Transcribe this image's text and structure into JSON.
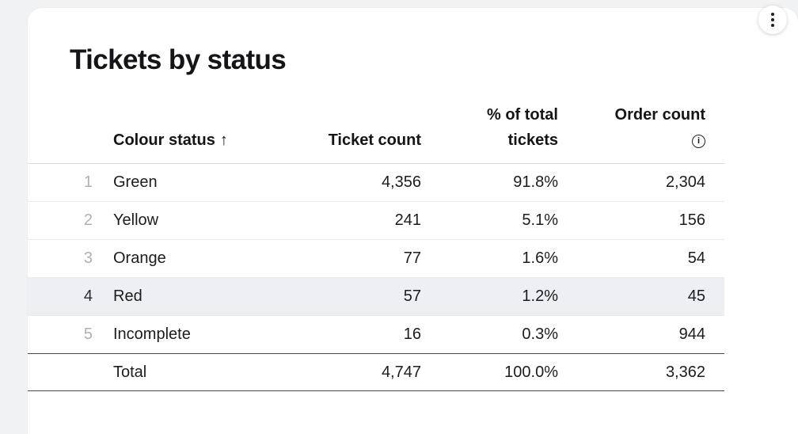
{
  "card": {
    "title": "Tickets by status"
  },
  "menu": {
    "kebab_icon": "more-options"
  },
  "table": {
    "headers": {
      "status": "Colour status",
      "status_sort_indicator": "↑",
      "ticket_count": "Ticket count",
      "pct_total": "% of total tickets",
      "order_count": "Order count",
      "order_count_info_icon": "i"
    },
    "highlighted_row_index": 4,
    "rows": [
      {
        "num": "1",
        "status": "Green",
        "tickets": "4,356",
        "pct": "91.8%",
        "orders": "2,304"
      },
      {
        "num": "2",
        "status": "Yellow",
        "tickets": "241",
        "pct": "5.1%",
        "orders": "156"
      },
      {
        "num": "3",
        "status": "Orange",
        "tickets": "77",
        "pct": "1.6%",
        "orders": "54"
      },
      {
        "num": "4",
        "status": "Red",
        "tickets": "57",
        "pct": "1.2%",
        "orders": "45"
      },
      {
        "num": "5",
        "status": "Incomplete",
        "tickets": "16",
        "pct": "0.3%",
        "orders": "944"
      }
    ],
    "total": {
      "label": "Total",
      "tickets": "4,747",
      "pct": "100.0%",
      "orders": "3,362"
    }
  },
  "colors": {
    "page_background": "#f1f2f3",
    "card_background": "#ffffff",
    "highlight_row": "#edeff2",
    "row_number": "#adb0b4",
    "text": "#1b1c1e"
  },
  "chart_data": {
    "type": "table",
    "title": "Tickets by status",
    "columns": [
      "Colour status",
      "Ticket count",
      "% of total tickets",
      "Order count"
    ],
    "sort": {
      "column": "Colour status",
      "direction": "ascending"
    },
    "rows": [
      [
        "Green",
        4356,
        "91.8%",
        2304
      ],
      [
        "Yellow",
        241,
        "5.1%",
        156
      ],
      [
        "Orange",
        77,
        "1.6%",
        54
      ],
      [
        "Red",
        57,
        "1.2%",
        45
      ],
      [
        "Incomplete",
        16,
        "0.3%",
        944
      ]
    ],
    "total": [
      "Total",
      4747,
      "100.0%",
      3362
    ]
  }
}
